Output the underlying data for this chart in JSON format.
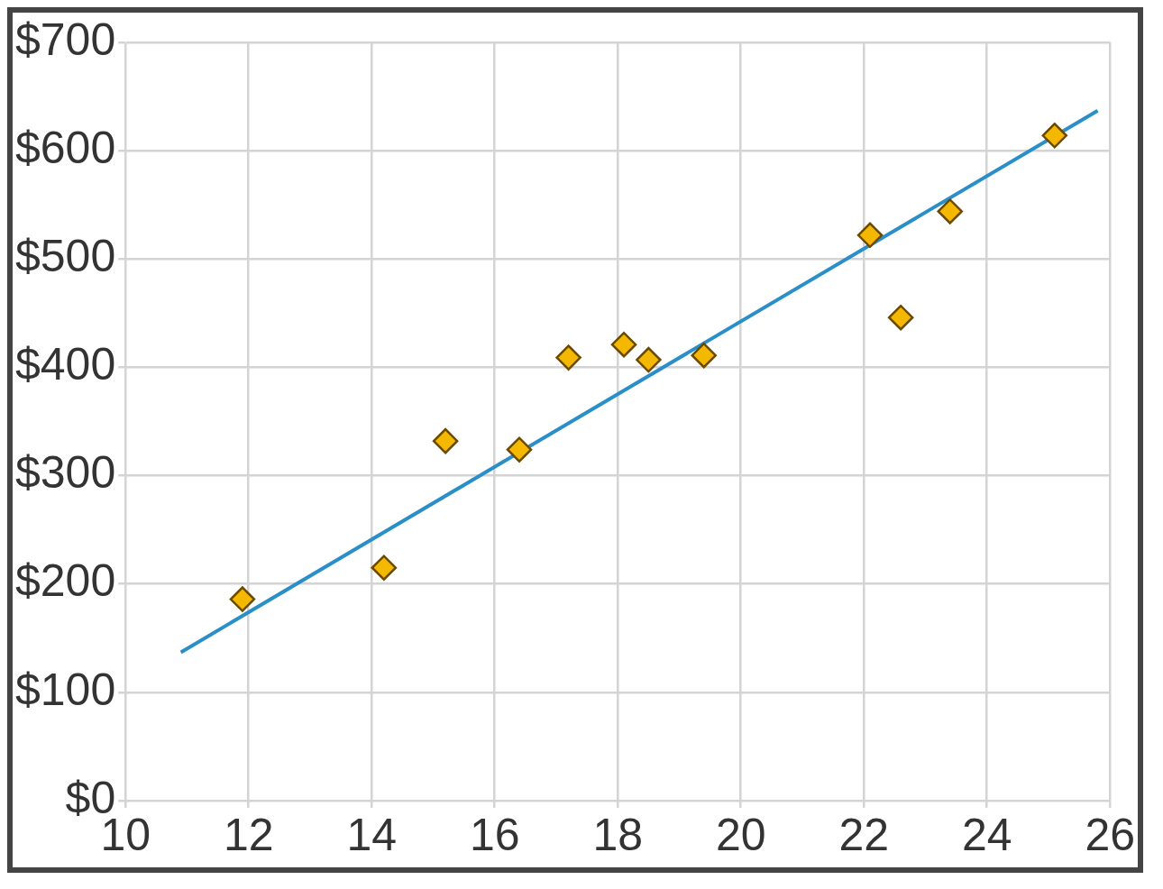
{
  "chart_data": {
    "type": "scatter",
    "xlim": [
      10,
      26
    ],
    "xticks": [
      10,
      12,
      14,
      16,
      18,
      20,
      22,
      24,
      26
    ],
    "ylim": [
      0,
      700
    ],
    "yticks": [
      {
        "value": 0,
        "label": "$0"
      },
      {
        "value": 100,
        "label": "$100"
      },
      {
        "value": 200,
        "label": "$200"
      },
      {
        "value": 300,
        "label": "$300"
      },
      {
        "value": 400,
        "label": "$400"
      },
      {
        "value": 500,
        "label": "$500"
      },
      {
        "value": 600,
        "label": "$600"
      },
      {
        "value": 700,
        "label": "$700"
      }
    ],
    "grid": true,
    "legend": false,
    "marker": "diamond",
    "series": [
      {
        "type": "scatter",
        "color": "#f5b800",
        "x": [
          11.9,
          14.2,
          15.2,
          16.4,
          17.2,
          18.1,
          18.5,
          19.4,
          22.1,
          22.6,
          23.4,
          25.1
        ],
        "values": [
          186,
          215,
          332,
          324,
          409,
          421,
          407,
          411,
          522,
          446,
          544,
          614
        ]
      },
      {
        "type": "line",
        "color": "#2a8fc9",
        "marker": "none",
        "x": [
          10.9,
          25.8
        ],
        "values": [
          137,
          637
        ]
      }
    ]
  }
}
